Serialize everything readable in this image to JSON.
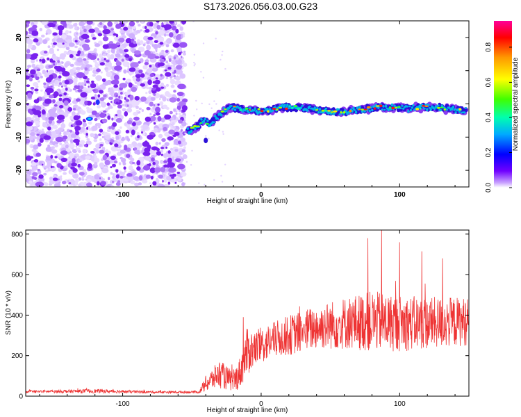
{
  "title": "S173.2026.056.03.00.G23",
  "chart_data": [
    {
      "type": "heatmap",
      "title": "S173.2026.056.03.00.G23",
      "xlabel": "Height of straight line (km)",
      "ylabel": "Frequency (Hz)",
      "xlim": [
        -170,
        150
      ],
      "ylim": [
        -25,
        25
      ],
      "xticks": [
        -100,
        0,
        100
      ],
      "yticks": [
        -20,
        -10,
        0,
        10,
        20
      ],
      "colorbar": {
        "label": "Normalized spectral amplitude",
        "range": [
          0,
          0.95
        ],
        "ticks": [
          "0.0",
          "0.2",
          "0.4",
          "0.6",
          "0.8"
        ]
      },
      "noise_region_x": [
        -170,
        -55
      ],
      "signal_ridge": {
        "x": [
          -52,
          -47,
          -42,
          -37,
          -32,
          -27,
          -22,
          -15,
          -5,
          5,
          15,
          25,
          35,
          45,
          55,
          65,
          75,
          85,
          95,
          105,
          115,
          125,
          135,
          145
        ],
        "freq": [
          -8,
          -7,
          -5,
          -6,
          -4,
          -2,
          -1,
          -1.5,
          -2,
          -2,
          -1,
          -1,
          -1.5,
          -2,
          -2.5,
          -2,
          -1.5,
          -1,
          -1,
          -1.5,
          -1,
          -1,
          -1.5,
          -2
        ]
      }
    },
    {
      "type": "line",
      "xlabel": "Height of straight line (km)",
      "ylabel": "SNR (10 * v/v)",
      "xlim": [
        -170,
        150
      ],
      "ylim": [
        0,
        820
      ],
      "xticks": [
        -100,
        0,
        100
      ],
      "yticks": [
        0,
        200,
        400,
        600,
        800
      ],
      "series": [
        {
          "name": "SNR",
          "color": "#ee3333",
          "envelope_x": [
            -170,
            -120,
            -80,
            -45,
            -40,
            -30,
            -25,
            -20,
            -15,
            -10,
            -5,
            0,
            10,
            20,
            40,
            60,
            80,
            100,
            120,
            150
          ],
          "mean": [
            22,
            25,
            20,
            20,
            60,
            110,
            90,
            70,
            120,
            220,
            230,
            250,
            280,
            300,
            340,
            360,
            370,
            360,
            360,
            370
          ],
          "spread": [
            6,
            10,
            6,
            6,
            40,
            70,
            60,
            50,
            80,
            120,
            90,
            90,
            90,
            100,
            110,
            130,
            150,
            140,
            130,
            120
          ],
          "peaks": [
            {
              "x": -13,
              "y": 390
            },
            {
              "x": 77,
              "y": 780
            },
            {
              "x": 87,
              "y": 820
            },
            {
              "x": 100,
              "y": 760
            },
            {
              "x": 116,
              "y": 715
            },
            {
              "x": 131,
              "y": 680
            }
          ]
        }
      ]
    }
  ]
}
